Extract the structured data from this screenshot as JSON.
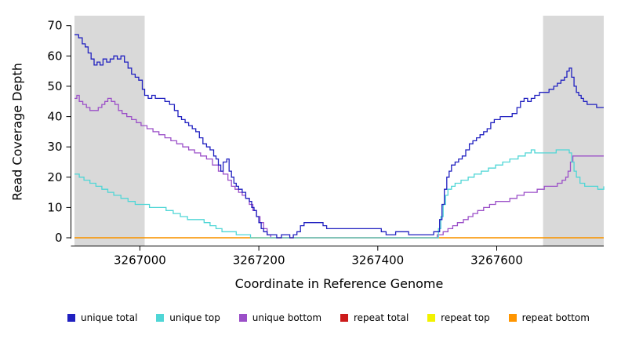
{
  "chart_data": {
    "type": "line",
    "step": true,
    "title": "",
    "xlabel": "Coordinate in Reference Genome",
    "ylabel": "Read Coverage Depth",
    "xlim": [
      3266890,
      3267780
    ],
    "ylim": [
      0,
      72
    ],
    "xticks": [
      3267000,
      3267200,
      3267400,
      3267600
    ],
    "yticks": [
      0,
      10,
      20,
      30,
      40,
      50,
      60,
      70
    ],
    "grid": false,
    "shade_color": "#d9d9d9",
    "shaded_regions": [
      [
        3266890,
        3267008
      ],
      [
        3267678,
        3267780
      ]
    ],
    "legend_position": "bottom",
    "legend_order": [
      "unique total",
      "unique top",
      "unique bottom",
      "repeat total",
      "repeat top",
      "repeat bottom"
    ],
    "series": [
      {
        "name": "repeat total",
        "color": "#cc1b1b",
        "points": [
          [
            3266890,
            0
          ],
          [
            3267780,
            0
          ]
        ]
      },
      {
        "name": "repeat top",
        "color": "#f2f200",
        "points": [
          [
            3266890,
            0
          ],
          [
            3267780,
            0
          ]
        ]
      },
      {
        "name": "repeat bottom",
        "color": "#ff9500",
        "points": [
          [
            3266890,
            0
          ],
          [
            3267780,
            0
          ]
        ]
      },
      {
        "name": "unique bottom",
        "color": "#9b4fc8",
        "points": [
          [
            3266890,
            46
          ],
          [
            3266894,
            47
          ],
          [
            3266898,
            45
          ],
          [
            3266904,
            44
          ],
          [
            3266910,
            43
          ],
          [
            3266916,
            42
          ],
          [
            3266924,
            42
          ],
          [
            3266930,
            43
          ],
          [
            3266936,
            44
          ],
          [
            3266941,
            45
          ],
          [
            3266946,
            46
          ],
          [
            3266952,
            45
          ],
          [
            3266958,
            44
          ],
          [
            3266964,
            42
          ],
          [
            3266970,
            41
          ],
          [
            3266978,
            40
          ],
          [
            3266986,
            39
          ],
          [
            3266994,
            38
          ],
          [
            3267002,
            37
          ],
          [
            3267012,
            36
          ],
          [
            3267022,
            35
          ],
          [
            3267032,
            34
          ],
          [
            3267042,
            33
          ],
          [
            3267052,
            32
          ],
          [
            3267062,
            31
          ],
          [
            3267072,
            30
          ],
          [
            3267082,
            29
          ],
          [
            3267092,
            28
          ],
          [
            3267102,
            27
          ],
          [
            3267112,
            26
          ],
          [
            3267122,
            24
          ],
          [
            3267132,
            22
          ],
          [
            3267140,
            21
          ],
          [
            3267148,
            19
          ],
          [
            3267154,
            17
          ],
          [
            3267160,
            16
          ],
          [
            3267166,
            15
          ],
          [
            3267172,
            14
          ],
          [
            3267178,
            13
          ],
          [
            3267184,
            11
          ],
          [
            3267190,
            9
          ],
          [
            3267196,
            7
          ],
          [
            3267202,
            5
          ],
          [
            3267208,
            3
          ],
          [
            3267214,
            1
          ],
          [
            3267220,
            0
          ],
          [
            3267492,
            0
          ],
          [
            3267500,
            1
          ],
          [
            3267510,
            2
          ],
          [
            3267518,
            3
          ],
          [
            3267526,
            4
          ],
          [
            3267534,
            5
          ],
          [
            3267544,
            6
          ],
          [
            3267552,
            7
          ],
          [
            3267560,
            8
          ],
          [
            3267568,
            9
          ],
          [
            3267578,
            10
          ],
          [
            3267588,
            11
          ],
          [
            3267598,
            12
          ],
          [
            3267612,
            12
          ],
          [
            3267622,
            13
          ],
          [
            3267634,
            14
          ],
          [
            3267646,
            15
          ],
          [
            3267658,
            15
          ],
          [
            3267668,
            16
          ],
          [
            3267680,
            17
          ],
          [
            3267692,
            17
          ],
          [
            3267702,
            18
          ],
          [
            3267710,
            19
          ],
          [
            3267716,
            20
          ],
          [
            3267720,
            22
          ],
          [
            3267724,
            25
          ],
          [
            3267728,
            27
          ],
          [
            3267740,
            27
          ],
          [
            3267780,
            27
          ]
        ]
      },
      {
        "name": "unique top",
        "color": "#4fd6d6",
        "points": [
          [
            3266890,
            21
          ],
          [
            3266898,
            20
          ],
          [
            3266906,
            19
          ],
          [
            3266916,
            18
          ],
          [
            3266926,
            17
          ],
          [
            3266936,
            16
          ],
          [
            3266946,
            15
          ],
          [
            3266956,
            14
          ],
          [
            3266968,
            13
          ],
          [
            3266980,
            12
          ],
          [
            3266992,
            11
          ],
          [
            3267006,
            11
          ],
          [
            3267016,
            10
          ],
          [
            3267032,
            10
          ],
          [
            3267044,
            9
          ],
          [
            3267056,
            8
          ],
          [
            3267068,
            7
          ],
          [
            3267080,
            6
          ],
          [
            3267096,
            6
          ],
          [
            3267108,
            5
          ],
          [
            3267118,
            4
          ],
          [
            3267128,
            3
          ],
          [
            3267138,
            2
          ],
          [
            3267152,
            2
          ],
          [
            3267162,
            1
          ],
          [
            3267178,
            1
          ],
          [
            3267186,
            0
          ],
          [
            3267496,
            0
          ],
          [
            3267502,
            3
          ],
          [
            3267506,
            7
          ],
          [
            3267510,
            11
          ],
          [
            3267514,
            14
          ],
          [
            3267518,
            16
          ],
          [
            3267524,
            17
          ],
          [
            3267530,
            18
          ],
          [
            3267540,
            19
          ],
          [
            3267552,
            20
          ],
          [
            3267562,
            21
          ],
          [
            3267574,
            22
          ],
          [
            3267586,
            23
          ],
          [
            3267598,
            24
          ],
          [
            3267610,
            25
          ],
          [
            3267622,
            26
          ],
          [
            3267636,
            27
          ],
          [
            3267648,
            28
          ],
          [
            3267658,
            29
          ],
          [
            3267664,
            28
          ],
          [
            3267676,
            28
          ],
          [
            3267690,
            28
          ],
          [
            3267700,
            29
          ],
          [
            3267716,
            29
          ],
          [
            3267722,
            28
          ],
          [
            3267726,
            25
          ],
          [
            3267730,
            22
          ],
          [
            3267734,
            20
          ],
          [
            3267740,
            18
          ],
          [
            3267748,
            17
          ],
          [
            3267762,
            17
          ],
          [
            3267770,
            16
          ],
          [
            3267780,
            17
          ]
        ]
      },
      {
        "name": "unique total",
        "color": "#2020c0",
        "points": [
          [
            3266890,
            67
          ],
          [
            3266897,
            66
          ],
          [
            3266903,
            64
          ],
          [
            3266908,
            63
          ],
          [
            3266913,
            61
          ],
          [
            3266918,
            59
          ],
          [
            3266923,
            57
          ],
          [
            3266928,
            58
          ],
          [
            3266933,
            57
          ],
          [
            3266938,
            59
          ],
          [
            3266944,
            58
          ],
          [
            3266950,
            59
          ],
          [
            3266956,
            60
          ],
          [
            3266962,
            59
          ],
          [
            3266968,
            60
          ],
          [
            3266974,
            58
          ],
          [
            3266980,
            56
          ],
          [
            3266986,
            54
          ],
          [
            3266992,
            53
          ],
          [
            3266998,
            52
          ],
          [
            3267004,
            49
          ],
          [
            3267008,
            47
          ],
          [
            3267014,
            46
          ],
          [
            3267020,
            47
          ],
          [
            3267026,
            46
          ],
          [
            3267034,
            46
          ],
          [
            3267042,
            45
          ],
          [
            3267050,
            44
          ],
          [
            3267058,
            42
          ],
          [
            3267064,
            40
          ],
          [
            3267070,
            39
          ],
          [
            3267076,
            38
          ],
          [
            3267082,
            37
          ],
          [
            3267088,
            36
          ],
          [
            3267094,
            35
          ],
          [
            3267100,
            33
          ],
          [
            3267106,
            31
          ],
          [
            3267112,
            30
          ],
          [
            3267118,
            29
          ],
          [
            3267124,
            27
          ],
          [
            3267128,
            26
          ],
          [
            3267132,
            24
          ],
          [
            3267136,
            22
          ],
          [
            3267140,
            25
          ],
          [
            3267146,
            26
          ],
          [
            3267150,
            22
          ],
          [
            3267154,
            20
          ],
          [
            3267158,
            18
          ],
          [
            3267162,
            17
          ],
          [
            3267166,
            16
          ],
          [
            3267172,
            15
          ],
          [
            3267178,
            13
          ],
          [
            3267184,
            12
          ],
          [
            3267188,
            10
          ],
          [
            3267192,
            9
          ],
          [
            3267196,
            7
          ],
          [
            3267200,
            5
          ],
          [
            3267204,
            3
          ],
          [
            3267208,
            2
          ],
          [
            3267214,
            1
          ],
          [
            3267222,
            1
          ],
          [
            3267230,
            0
          ],
          [
            3267238,
            1
          ],
          [
            3267246,
            1
          ],
          [
            3267252,
            0
          ],
          [
            3267258,
            1
          ],
          [
            3267264,
            2
          ],
          [
            3267270,
            4
          ],
          [
            3267276,
            5
          ],
          [
            3267300,
            5
          ],
          [
            3267308,
            4
          ],
          [
            3267314,
            3
          ],
          [
            3267398,
            3
          ],
          [
            3267406,
            2
          ],
          [
            3267414,
            1
          ],
          [
            3267430,
            2
          ],
          [
            3267444,
            2
          ],
          [
            3267452,
            1
          ],
          [
            3267486,
            1
          ],
          [
            3267494,
            2
          ],
          [
            3267500,
            2
          ],
          [
            3267504,
            6
          ],
          [
            3267508,
            11
          ],
          [
            3267512,
            16
          ],
          [
            3267516,
            20
          ],
          [
            3267520,
            22
          ],
          [
            3267524,
            24
          ],
          [
            3267530,
            25
          ],
          [
            3267536,
            26
          ],
          [
            3267542,
            27
          ],
          [
            3267548,
            29
          ],
          [
            3267554,
            31
          ],
          [
            3267560,
            32
          ],
          [
            3267566,
            33
          ],
          [
            3267572,
            34
          ],
          [
            3267578,
            35
          ],
          [
            3267584,
            36
          ],
          [
            3267590,
            38
          ],
          [
            3267596,
            39
          ],
          [
            3267606,
            40
          ],
          [
            3267616,
            40
          ],
          [
            3267626,
            41
          ],
          [
            3267634,
            43
          ],
          [
            3267640,
            45
          ],
          [
            3267646,
            46
          ],
          [
            3267652,
            45
          ],
          [
            3267658,
            46
          ],
          [
            3267664,
            47
          ],
          [
            3267672,
            48
          ],
          [
            3267680,
            48
          ],
          [
            3267688,
            49
          ],
          [
            3267696,
            50
          ],
          [
            3267702,
            51
          ],
          [
            3267708,
            52
          ],
          [
            3267714,
            53
          ],
          [
            3267718,
            55
          ],
          [
            3267722,
            56
          ],
          [
            3267726,
            53
          ],
          [
            3267730,
            50
          ],
          [
            3267734,
            48
          ],
          [
            3267738,
            47
          ],
          [
            3267742,
            46
          ],
          [
            3267746,
            45
          ],
          [
            3267752,
            44
          ],
          [
            3267760,
            44
          ],
          [
            3267768,
            43
          ],
          [
            3267780,
            43
          ]
        ]
      }
    ]
  }
}
